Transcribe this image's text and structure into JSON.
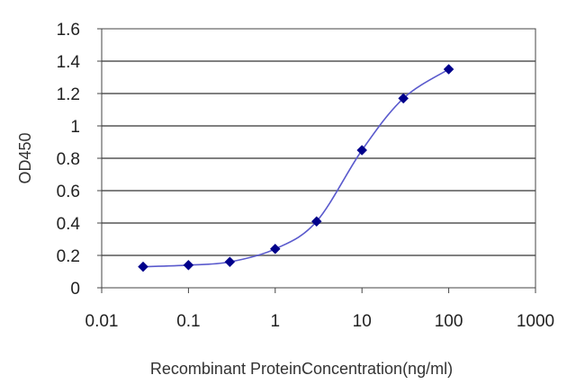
{
  "chart_data": {
    "type": "line",
    "title": "",
    "xlabel": "Recombinant ProteinConcentration(ng/ml)",
    "ylabel": "OD450",
    "x_scale": "log",
    "xlim": [
      0.01,
      1000
    ],
    "ylim": [
      0,
      1.6
    ],
    "x_ticks": [
      "0.01",
      "0.1",
      "1",
      "10",
      "100",
      "1000"
    ],
    "y_ticks": [
      "0",
      "0.2",
      "0.4",
      "0.6",
      "0.8",
      "1",
      "1.2",
      "1.4",
      "1.6"
    ],
    "grid": true,
    "series_color": "#00008b",
    "line_color": "#5a5acd",
    "series": [
      {
        "x": [
          0.03,
          0.1,
          0.3,
          1,
          3,
          10,
          30,
          100
        ],
        "y": [
          0.13,
          0.14,
          0.16,
          0.24,
          0.41,
          0.85,
          1.17,
          1.35
        ]
      }
    ]
  }
}
